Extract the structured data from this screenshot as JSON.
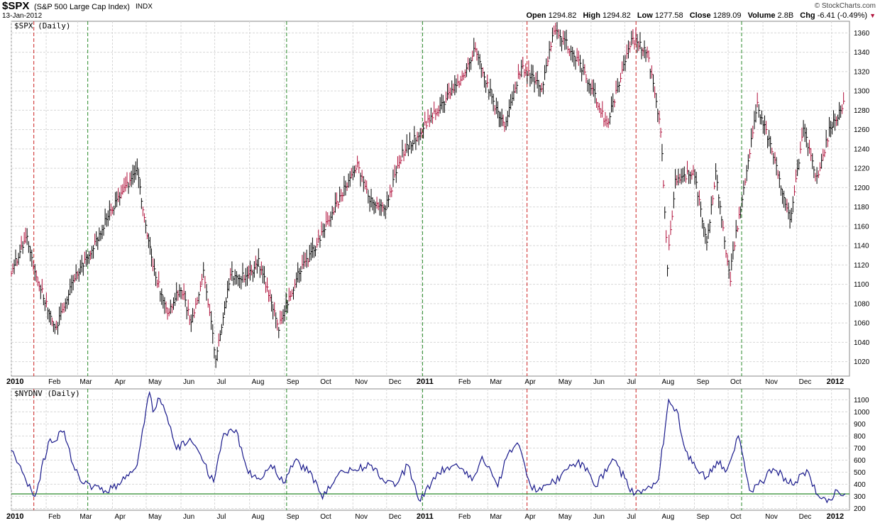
{
  "header": {
    "symbol": "$SPX",
    "name": "(S&P 500 Large Cap Index)",
    "exchange": "INDX",
    "date": "13-Jan-2012",
    "logo": "© StockCharts.com",
    "open_label": "Open",
    "open": "1294.82",
    "high_label": "High",
    "high": "1294.82",
    "low_label": "Low",
    "low": "1277.58",
    "close_label": "Close",
    "close": "1289.09",
    "volume_label": "Volume",
    "volume": "2.8B",
    "chg_label": "Chg",
    "chg": "-6.41 (-0.49%)",
    "chg_icon": "down-triangle-icon"
  },
  "colors": {
    "up_bar": "#000000",
    "down_bar": "#b0103a",
    "indicator_line": "#1a1a8c",
    "reference_line": "#2a8a2a",
    "buy_signal": "#2a8a2a",
    "sell_signal": "#cc2222",
    "grid": "#d8d8d8"
  },
  "chart_data": [
    {
      "type": "line",
      "label": "$SPX (Daily)",
      "series_name": "$SPX",
      "x_ticks": [
        "2010",
        "Feb",
        "Mar",
        "Apr",
        "May",
        "Jun",
        "Jul",
        "Aug",
        "Sep",
        "Oct",
        "Nov",
        "Dec",
        "2011",
        "Feb",
        "Mar",
        "Apr",
        "May",
        "Jun",
        "Jul",
        "Aug",
        "Sep",
        "Oct",
        "Nov",
        "Dec",
        "2012"
      ],
      "y_ticks": [
        1020,
        1040,
        1060,
        1080,
        1100,
        1120,
        1140,
        1160,
        1180,
        1200,
        1220,
        1240,
        1260,
        1280,
        1300,
        1320,
        1340,
        1360
      ],
      "ylim": [
        1005,
        1372
      ],
      "x": [
        "2010-01-01",
        "2010-01-15",
        "2010-01-22",
        "2010-02-05",
        "2010-02-10",
        "2010-02-25",
        "2010-03-15",
        "2010-04-01",
        "2010-04-23",
        "2010-05-07",
        "2010-05-20",
        "2010-06-01",
        "2010-06-10",
        "2010-06-21",
        "2010-07-02",
        "2010-07-15",
        "2010-07-30",
        "2010-08-09",
        "2010-08-27",
        "2010-09-13",
        "2010-09-30",
        "2010-10-15",
        "2010-11-05",
        "2010-11-16",
        "2010-11-30",
        "2010-12-15",
        "2010-12-31",
        "2011-01-15",
        "2011-02-01",
        "2011-02-18",
        "2011-03-10",
        "2011-03-16",
        "2011-03-31",
        "2011-04-18",
        "2011-04-29",
        "2011-05-10",
        "2011-05-25",
        "2011-06-15",
        "2011-06-30",
        "2011-07-07",
        "2011-07-21",
        "2011-08-02",
        "2011-08-08",
        "2011-08-15",
        "2011-08-31",
        "2011-09-12",
        "2011-09-20",
        "2011-10-03",
        "2011-10-04",
        "2011-10-27",
        "2011-11-09",
        "2011-11-25",
        "2011-12-07",
        "2011-12-19",
        "2011-12-30",
        "2012-01-13"
      ],
      "values": [
        1115,
        1148,
        1112,
        1068,
        1056,
        1105,
        1140,
        1180,
        1217,
        1117,
        1071,
        1097,
        1060,
        1113,
        1025,
        1110,
        1107,
        1123,
        1056,
        1110,
        1141,
        1177,
        1225,
        1187,
        1180,
        1235,
        1258,
        1280,
        1305,
        1343,
        1275,
        1265,
        1325,
        1303,
        1363,
        1349,
        1322,
        1265,
        1325,
        1353,
        1342,
        1260,
        1120,
        1205,
        1218,
        1144,
        1216,
        1100,
        1123,
        1285,
        1240,
        1164,
        1260,
        1210,
        1258,
        1290
      ]
    },
    {
      "type": "line",
      "label": "$NYDNV (Daily)",
      "series_name": "$NYDNV",
      "x_ticks": [
        "2010",
        "Feb",
        "Mar",
        "Apr",
        "May",
        "Jun",
        "Jul",
        "Aug",
        "Sep",
        "Oct",
        "Nov",
        "Dec",
        "2011",
        "Feb",
        "Mar",
        "Apr",
        "May",
        "Jun",
        "Jul",
        "Aug",
        "Sep",
        "Oct",
        "Nov",
        "Dec",
        "2012"
      ],
      "y_ticks": [
        200,
        300,
        400,
        500,
        600,
        700,
        800,
        900,
        1000,
        1100
      ],
      "ylim": [
        185,
        1190
      ],
      "reference_value": 320,
      "x": [
        "2010-01-01",
        "2010-01-14",
        "2010-01-22",
        "2010-02-03",
        "2010-02-17",
        "2010-02-25",
        "2010-03-05",
        "2010-03-15",
        "2010-03-24",
        "2010-04-09",
        "2010-04-23",
        "2010-05-04",
        "2010-05-07",
        "2010-05-13",
        "2010-05-21",
        "2010-05-28",
        "2010-06-09",
        "2010-06-20",
        "2010-06-30",
        "2010-07-09",
        "2010-07-20",
        "2010-07-31",
        "2010-08-09",
        "2010-08-20",
        "2010-08-31",
        "2010-09-10",
        "2010-09-24",
        "2010-10-05",
        "2010-10-20",
        "2010-11-03",
        "2010-11-16",
        "2010-11-27",
        "2010-12-10",
        "2010-12-20",
        "2010-12-31",
        "2011-01-15",
        "2011-02-01",
        "2011-02-15",
        "2011-02-24",
        "2011-03-10",
        "2011-03-19",
        "2011-03-29",
        "2011-04-08",
        "2011-04-18",
        "2011-04-29",
        "2011-05-10",
        "2011-05-24",
        "2011-06-05",
        "2011-06-20",
        "2011-07-01",
        "2011-07-09",
        "2011-07-19",
        "2011-07-31",
        "2011-08-09",
        "2011-08-16",
        "2011-08-24",
        "2011-09-02",
        "2011-09-12",
        "2011-09-21",
        "2011-09-30",
        "2011-10-10",
        "2011-10-20",
        "2011-10-31",
        "2011-11-10",
        "2011-11-21",
        "2011-11-30",
        "2011-12-10",
        "2011-12-20",
        "2011-12-28",
        "2012-01-06",
        "2012-01-13"
      ],
      "values": [
        680,
        430,
        300,
        750,
        840,
        560,
        410,
        380,
        330,
        420,
        560,
        1160,
        1000,
        1110,
        900,
        690,
        780,
        600,
        420,
        820,
        850,
        490,
        450,
        560,
        410,
        590,
        510,
        280,
        500,
        520,
        560,
        450,
        400,
        560,
        260,
        500,
        570,
        430,
        630,
        380,
        650,
        720,
        390,
        350,
        420,
        520,
        580,
        380,
        610,
        450,
        310,
        350,
        440,
        1100,
        1020,
        680,
        540,
        460,
        590,
        520,
        800,
        350,
        420,
        530,
        450,
        420,
        520,
        310,
        250,
        350,
        320
      ]
    }
  ]
}
